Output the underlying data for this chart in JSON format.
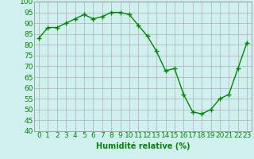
{
  "x": [
    0,
    1,
    2,
    3,
    4,
    5,
    6,
    7,
    8,
    9,
    10,
    11,
    12,
    13,
    14,
    15,
    16,
    17,
    18,
    19,
    20,
    21,
    22,
    23
  ],
  "y": [
    83,
    88,
    88,
    90,
    92,
    94,
    92,
    93,
    95,
    95,
    94,
    89,
    84,
    77,
    68,
    69,
    57,
    49,
    48,
    50,
    55,
    57,
    69,
    81
  ],
  "x_labels": [
    "0",
    "1",
    "2",
    "3",
    "4",
    "5",
    "6",
    "7",
    "8",
    "9",
    "10",
    "11",
    "12",
    "13",
    "14",
    "15",
    "16",
    "17",
    "18",
    "19",
    "20",
    "21",
    "22",
    "23"
  ],
  "y_ticks": [
    40,
    45,
    50,
    55,
    60,
    65,
    70,
    75,
    80,
    85,
    90,
    95,
    100
  ],
  "ylim": [
    40,
    100
  ],
  "xlim": [
    -0.5,
    23.5
  ],
  "line_color": "#008800",
  "marker": "+",
  "marker_size": 4,
  "marker_color": "#008800",
  "bg_color": "#d0f0f0",
  "grid_color": "#b0b0b0",
  "xlabel": "Humidité relative (%)",
  "xlabel_color": "#008800",
  "xlabel_fontsize": 7,
  "tick_fontsize": 6.5,
  "tick_color": "#008800",
  "linewidth": 1.0
}
